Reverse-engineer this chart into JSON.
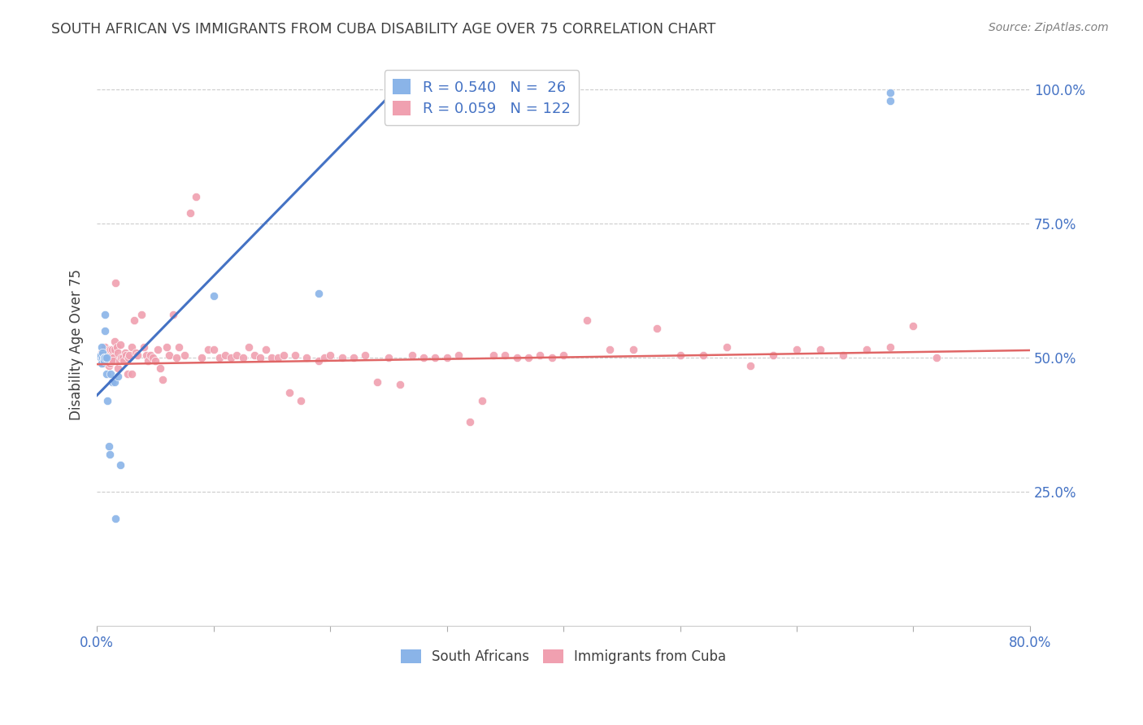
{
  "title": "SOUTH AFRICAN VS IMMIGRANTS FROM CUBA DISABILITY AGE OVER 75 CORRELATION CHART",
  "source": "Source: ZipAtlas.com",
  "ylabel": "Disability Age Over 75",
  "ytick_labels": [
    "100.0%",
    "75.0%",
    "50.0%",
    "25.0%"
  ],
  "ytick_values": [
    1.0,
    0.75,
    0.5,
    0.25
  ],
  "xlim": [
    0.0,
    0.8
  ],
  "ylim": [
    0.0,
    1.05
  ],
  "legend_r1": "R = 0.540",
  "legend_n1": "N =  26",
  "legend_r2": "R = 0.059",
  "legend_n2": "N = 122",
  "color_sa": "#8ab4e8",
  "color_cuba": "#f0a0b0",
  "color_line_sa": "#4472c4",
  "color_line_cuba": "#e06666",
  "color_text_blue": "#4472c4",
  "title_color": "#404040",
  "source_color": "#808080",
  "sa_x": [
    0.003,
    0.003,
    0.004,
    0.004,
    0.005,
    0.005,
    0.006,
    0.006,
    0.007,
    0.007,
    0.007,
    0.008,
    0.008,
    0.009,
    0.01,
    0.011,
    0.012,
    0.013,
    0.015,
    0.016,
    0.018,
    0.02,
    0.1,
    0.19,
    0.68,
    0.68
  ],
  "sa_y": [
    0.5,
    0.505,
    0.49,
    0.52,
    0.5,
    0.51,
    0.5,
    0.495,
    0.55,
    0.58,
    0.5,
    0.5,
    0.47,
    0.42,
    0.335,
    0.32,
    0.47,
    0.455,
    0.455,
    0.2,
    0.465,
    0.3,
    0.615,
    0.62,
    0.995,
    0.98
  ],
  "cuba_x": [
    0.003,
    0.004,
    0.004,
    0.005,
    0.005,
    0.006,
    0.006,
    0.007,
    0.007,
    0.008,
    0.008,
    0.009,
    0.009,
    0.009,
    0.01,
    0.01,
    0.01,
    0.011,
    0.011,
    0.012,
    0.012,
    0.013,
    0.013,
    0.014,
    0.014,
    0.015,
    0.015,
    0.016,
    0.017,
    0.018,
    0.018,
    0.019,
    0.02,
    0.021,
    0.022,
    0.023,
    0.024,
    0.025,
    0.026,
    0.027,
    0.028,
    0.03,
    0.03,
    0.032,
    0.033,
    0.035,
    0.038,
    0.04,
    0.042,
    0.044,
    0.046,
    0.048,
    0.05,
    0.052,
    0.054,
    0.056,
    0.06,
    0.062,
    0.065,
    0.068,
    0.07,
    0.075,
    0.08,
    0.085,
    0.09,
    0.095,
    0.1,
    0.105,
    0.11,
    0.115,
    0.12,
    0.125,
    0.13,
    0.135,
    0.14,
    0.145,
    0.15,
    0.155,
    0.16,
    0.165,
    0.17,
    0.175,
    0.18,
    0.19,
    0.195,
    0.2,
    0.21,
    0.22,
    0.23,
    0.24,
    0.25,
    0.26,
    0.27,
    0.28,
    0.29,
    0.3,
    0.31,
    0.32,
    0.33,
    0.34,
    0.35,
    0.36,
    0.37,
    0.38,
    0.39,
    0.4,
    0.42,
    0.44,
    0.46,
    0.48,
    0.5,
    0.52,
    0.54,
    0.56,
    0.58,
    0.6,
    0.62,
    0.64,
    0.66,
    0.68,
    0.7,
    0.72
  ],
  "cuba_y": [
    0.5,
    0.5,
    0.51,
    0.495,
    0.505,
    0.5,
    0.51,
    0.49,
    0.52,
    0.5,
    0.505,
    0.5,
    0.505,
    0.495,
    0.5,
    0.485,
    0.515,
    0.49,
    0.505,
    0.515,
    0.495,
    0.505,
    0.515,
    0.5,
    0.495,
    0.515,
    0.53,
    0.64,
    0.52,
    0.51,
    0.48,
    0.495,
    0.525,
    0.5,
    0.5,
    0.495,
    0.51,
    0.505,
    0.47,
    0.5,
    0.505,
    0.52,
    0.47,
    0.57,
    0.51,
    0.505,
    0.58,
    0.52,
    0.505,
    0.495,
    0.505,
    0.5,
    0.495,
    0.515,
    0.48,
    0.46,
    0.52,
    0.505,
    0.58,
    0.5,
    0.52,
    0.505,
    0.77,
    0.8,
    0.5,
    0.515,
    0.515,
    0.5,
    0.505,
    0.5,
    0.505,
    0.5,
    0.52,
    0.505,
    0.5,
    0.515,
    0.5,
    0.5,
    0.505,
    0.435,
    0.505,
    0.42,
    0.5,
    0.495,
    0.5,
    0.505,
    0.5,
    0.5,
    0.505,
    0.455,
    0.5,
    0.45,
    0.505,
    0.5,
    0.5,
    0.5,
    0.505,
    0.38,
    0.42,
    0.505,
    0.505,
    0.5,
    0.5,
    0.505,
    0.5,
    0.505,
    0.57,
    0.515,
    0.515,
    0.555,
    0.505,
    0.505,
    0.52,
    0.485,
    0.505,
    0.515,
    0.515,
    0.505,
    0.515,
    0.52,
    0.56,
    0.5
  ],
  "sa_line_x": [
    0.0,
    0.265
  ],
  "sa_line_y": [
    0.43,
    1.02
  ],
  "cuba_line_x": [
    0.0,
    0.8
  ],
  "cuba_line_y": [
    0.488,
    0.514
  ]
}
